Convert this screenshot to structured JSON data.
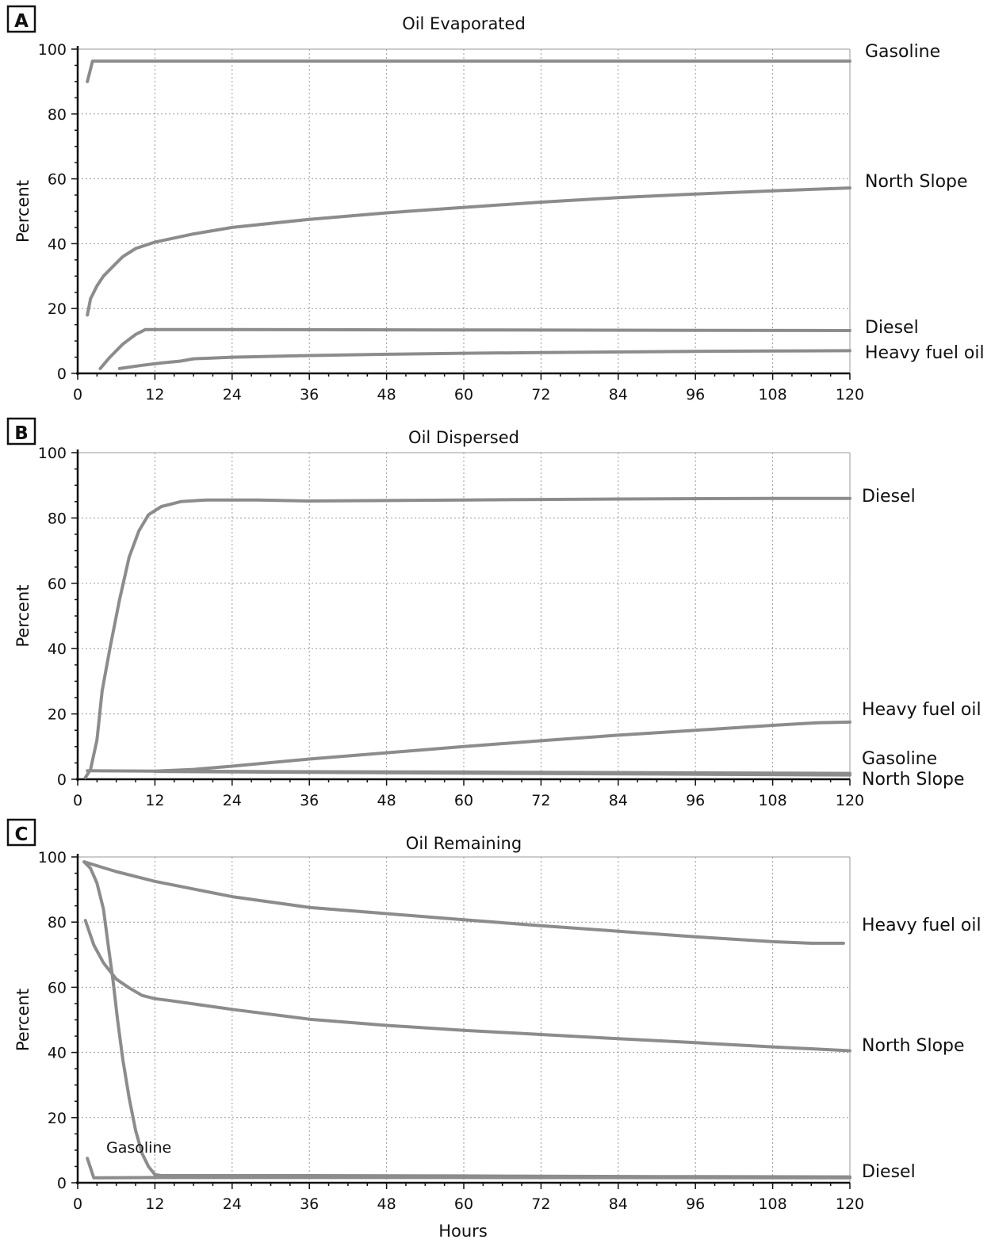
{
  "colors": {
    "line": "#8c8c8c",
    "grid": "#9a9a9a",
    "axis": "#111111",
    "text": "#111111"
  },
  "xlabel": "Hours",
  "chart_data": [
    {
      "panel_letter": "A",
      "type": "line",
      "title": "Oil Evaporated",
      "xlabel": "",
      "ylabel": "Percent",
      "xlim": [
        0,
        120
      ],
      "ylim": [
        0,
        100
      ],
      "x_ticks": [
        "0",
        "12",
        "24",
        "36",
        "48",
        "60",
        "72",
        "84",
        "96",
        "108",
        "120"
      ],
      "y_ticks": [
        "0",
        "20",
        "40",
        "60",
        "80",
        "100"
      ],
      "grid": true,
      "legend": "right, labels at line ends",
      "series": [
        {
          "name": "Gasoline",
          "points": [
            [
              1.5,
              90
            ],
            [
              2.3,
              96.3
            ],
            [
              120,
              96.3
            ]
          ]
        },
        {
          "name": "North Slope",
          "points": [
            [
              1.5,
              18
            ],
            [
              2,
              23
            ],
            [
              3,
              27
            ],
            [
              4,
              30
            ],
            [
              5.5,
              33
            ],
            [
              7,
              36
            ],
            [
              9,
              38.5
            ],
            [
              12,
              40.5
            ],
            [
              18,
              43
            ],
            [
              24,
              45
            ],
            [
              36,
              47.5
            ],
            [
              48,
              49.5
            ],
            [
              60,
              51.2
            ],
            [
              72,
              52.8
            ],
            [
              84,
              54.2
            ],
            [
              96,
              55.3
            ],
            [
              108,
              56.3
            ],
            [
              120,
              57.2
            ]
          ]
        },
        {
          "name": "Diesel",
          "points": [
            [
              3.5,
              1.5
            ],
            [
              5,
              5
            ],
            [
              7,
              9
            ],
            [
              9,
              12
            ],
            [
              10.5,
              13.5
            ],
            [
              24,
              13.5
            ],
            [
              60,
              13.4
            ],
            [
              120,
              13.2
            ]
          ]
        },
        {
          "name": "Heavy fuel oil",
          "points": [
            [
              6.5,
              1.5
            ],
            [
              10,
              2.5
            ],
            [
              13,
              3.2
            ],
            [
              16,
              3.8
            ],
            [
              18,
              4.5
            ],
            [
              24,
              5
            ],
            [
              36,
              5.5
            ],
            [
              48,
              5.9
            ],
            [
              60,
              6.2
            ],
            [
              72,
              6.4
            ],
            [
              84,
              6.6
            ],
            [
              96,
              6.8
            ],
            [
              108,
              6.9
            ],
            [
              120,
              7
            ]
          ]
        }
      ]
    },
    {
      "panel_letter": "B",
      "type": "line",
      "title": "Oil Dispersed",
      "xlabel": "",
      "ylabel": "Percent",
      "xlim": [
        0,
        120
      ],
      "ylim": [
        0,
        100
      ],
      "x_ticks": [
        "0",
        "12",
        "24",
        "36",
        "48",
        "60",
        "72",
        "84",
        "96",
        "108",
        "120"
      ],
      "y_ticks": [
        "0",
        "20",
        "40",
        "60",
        "80",
        "100"
      ],
      "grid": true,
      "legend": "right, labels at line ends",
      "series": [
        {
          "name": "Diesel",
          "points": [
            [
              1.2,
              0.5
            ],
            [
              2,
              3
            ],
            [
              3,
              12
            ],
            [
              3.8,
              27
            ],
            [
              5,
              40
            ],
            [
              6.5,
              55
            ],
            [
              8,
              68
            ],
            [
              9.5,
              76
            ],
            [
              11,
              81
            ],
            [
              13,
              83.5
            ],
            [
              16,
              85
            ],
            [
              20,
              85.5
            ],
            [
              28,
              85.5
            ],
            [
              36,
              85.2
            ],
            [
              60,
              85.5
            ],
            [
              84,
              85.8
            ],
            [
              108,
              86
            ],
            [
              120,
              86
            ]
          ]
        },
        {
          "name": "Heavy fuel oil",
          "points": [
            [
              12,
              2.5
            ],
            [
              18,
              3
            ],
            [
              24,
              4
            ],
            [
              36,
              6.2
            ],
            [
              48,
              8.1
            ],
            [
              60,
              10
            ],
            [
              72,
              11.8
            ],
            [
              84,
              13.5
            ],
            [
              96,
              15
            ],
            [
              108,
              16.5
            ],
            [
              115,
              17.3
            ],
            [
              120,
              17.5
            ]
          ]
        },
        {
          "name": "Gasoline",
          "points": [
            [
              1.5,
              2.6
            ],
            [
              12,
              2.5
            ],
            [
              36,
              2.3
            ],
            [
              60,
              2.2
            ],
            [
              90,
              2
            ],
            [
              120,
              1.8
            ]
          ]
        },
        {
          "name": "North Slope",
          "points": [
            [
              12,
              2.4
            ],
            [
              36,
              2.1
            ],
            [
              60,
              1.9
            ],
            [
              90,
              1.6
            ],
            [
              120,
              1.3
            ]
          ]
        }
      ]
    },
    {
      "panel_letter": "C",
      "type": "line",
      "title": "Oil Remaining",
      "xlabel": "Hours",
      "ylabel": "Percent",
      "xlim": [
        0,
        120
      ],
      "ylim": [
        0,
        100
      ],
      "x_ticks": [
        "0",
        "12",
        "24",
        "36",
        "48",
        "60",
        "72",
        "84",
        "96",
        "108",
        "120"
      ],
      "y_ticks": [
        "0",
        "20",
        "40",
        "60",
        "80",
        "100"
      ],
      "grid": true,
      "legend": "right, labels at line ends; Gasoline labeled inside plot",
      "series": [
        {
          "name": "Heavy fuel oil",
          "points": [
            [
              1,
              98.5
            ],
            [
              6,
              95.5
            ],
            [
              12,
              92.5
            ],
            [
              24,
              87.8
            ],
            [
              36,
              84.5
            ],
            [
              48,
              82.6
            ],
            [
              60,
              80.7
            ],
            [
              72,
              78.9
            ],
            [
              84,
              77.2
            ],
            [
              96,
              75.5
            ],
            [
              108,
              74
            ],
            [
              114,
              73.5
            ],
            [
              119,
              73.5
            ]
          ]
        },
        {
          "name": "North Slope",
          "points": [
            [
              1.2,
              80.5
            ],
            [
              2.5,
              73
            ],
            [
              4,
              67.5
            ],
            [
              6,
              62.5
            ],
            [
              8,
              59.8
            ],
            [
              10,
              57.5
            ],
            [
              12,
              56.5
            ],
            [
              14,
              56
            ],
            [
              24,
              53.2
            ],
            [
              36,
              50.2
            ],
            [
              48,
              48.3
            ],
            [
              60,
              46.8
            ],
            [
              72,
              45.5
            ],
            [
              84,
              44.2
            ],
            [
              96,
              43
            ],
            [
              108,
              41.7
            ],
            [
              120,
              40.5
            ]
          ]
        },
        {
          "name": "Diesel",
          "points": [
            [
              1,
              98.5
            ],
            [
              2,
              96.5
            ],
            [
              3,
              92
            ],
            [
              4,
              84
            ],
            [
              4.8,
              72
            ],
            [
              5.5,
              62
            ],
            [
              6.2,
              50
            ],
            [
              7,
              38
            ],
            [
              8,
              26
            ],
            [
              9,
              16
            ],
            [
              10,
              9
            ],
            [
              11,
              5
            ],
            [
              12,
              2.5
            ],
            [
              13,
              2.2
            ],
            [
              36,
              2.2
            ],
            [
              60,
              2.1
            ],
            [
              90,
              1.9
            ],
            [
              120,
              1.8
            ]
          ]
        },
        {
          "name": "Gasoline",
          "points": [
            [
              1.5,
              7.5
            ],
            [
              2.5,
              1.5
            ],
            [
              12,
              1.6
            ],
            [
              60,
              1.6
            ],
            [
              120,
              1.5
            ]
          ]
        }
      ]
    }
  ]
}
